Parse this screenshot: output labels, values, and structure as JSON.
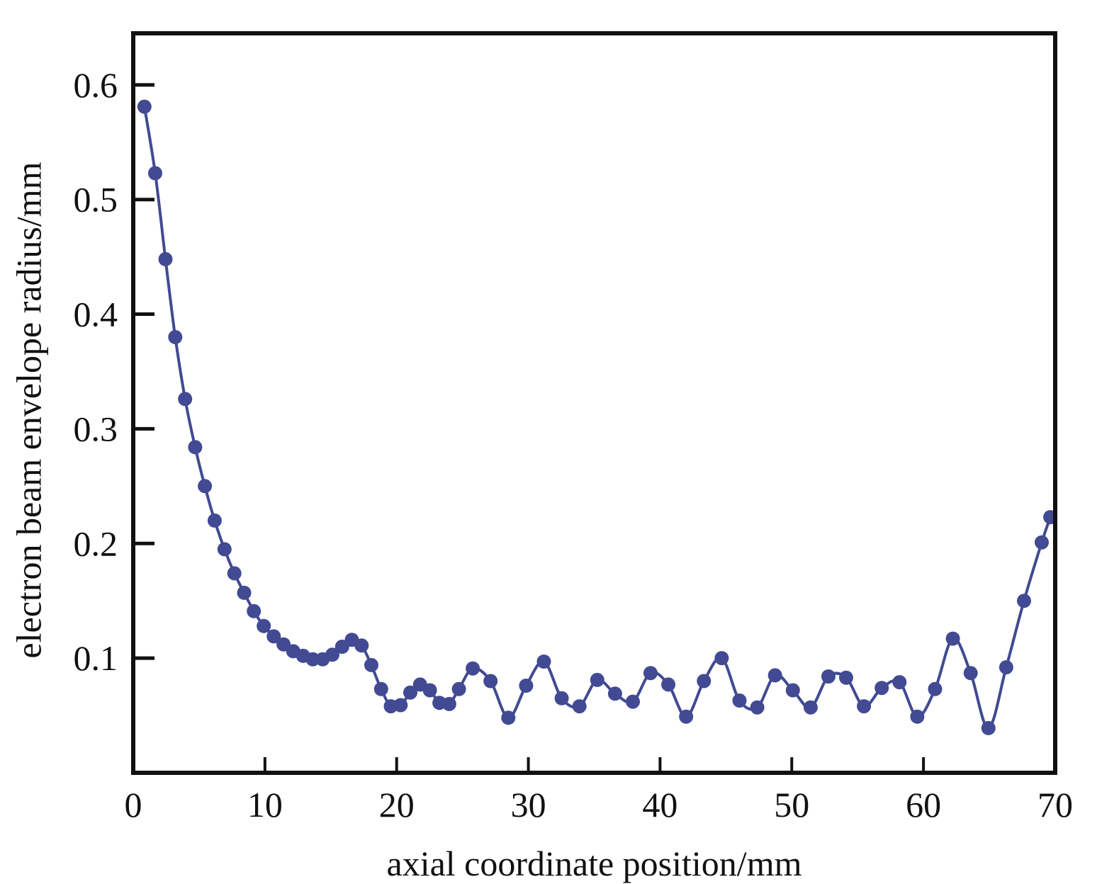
{
  "chart_data": {
    "type": "line",
    "xlabel": "axial coordinate position/mm",
    "ylabel": "electron beam envelope radius/mm",
    "xlim": [
      0,
      70
    ],
    "ylim": [
      0.0,
      0.645
    ],
    "xticks": [
      0,
      10,
      20,
      30,
      40,
      50,
      60,
      70
    ],
    "xtick_labels": [
      "0",
      "10",
      "20",
      "30",
      "40",
      "50",
      "60",
      "70"
    ],
    "yticks": [
      0.1,
      0.2,
      0.3,
      0.4,
      0.5,
      0.6
    ],
    "ytick_labels": [
      "0.1",
      "0.2",
      "0.3",
      "0.4",
      "0.5",
      "0.6"
    ],
    "grid": false,
    "legend": "none",
    "line_color": "#414a92",
    "marker": "circle",
    "series": [
      {
        "x": [
          0.85,
          1.67,
          2.45,
          3.19,
          3.94,
          4.7,
          5.44,
          6.18,
          6.93,
          7.68,
          8.42,
          9.16,
          9.91,
          10.67,
          11.41,
          12.15,
          12.9,
          13.64,
          14.38,
          15.12,
          15.86,
          16.6,
          17.34,
          18.08,
          18.82,
          19.56,
          20.3,
          21.04,
          21.78,
          22.52,
          23.25,
          23.99,
          24.73,
          25.78,
          27.13,
          28.48,
          29.83,
          31.18,
          32.53,
          33.88,
          35.23,
          36.58,
          37.93,
          39.28,
          40.63,
          41.98,
          43.33,
          44.68,
          46.03,
          47.38,
          48.73,
          50.08,
          51.43,
          52.78,
          54.13,
          55.48,
          56.83,
          58.18,
          59.53,
          60.88,
          62.23,
          63.58,
          64.93,
          66.28,
          67.63,
          68.98,
          69.63
        ],
        "y": [
          0.581,
          0.523,
          0.448,
          0.38,
          0.326,
          0.284,
          0.25,
          0.22,
          0.195,
          0.174,
          0.157,
          0.141,
          0.128,
          0.119,
          0.112,
          0.106,
          0.102,
          0.099,
          0.099,
          0.103,
          0.11,
          0.116,
          0.111,
          0.094,
          0.073,
          0.058,
          0.059,
          0.07,
          0.077,
          0.072,
          0.061,
          0.06,
          0.073,
          0.091,
          0.08,
          0.048,
          0.076,
          0.097,
          0.065,
          0.058,
          0.081,
          0.069,
          0.062,
          0.087,
          0.077,
          0.049,
          0.08,
          0.1,
          0.063,
          0.057,
          0.085,
          0.072,
          0.057,
          0.084,
          0.083,
          0.058,
          0.074,
          0.079,
          0.049,
          0.073,
          0.117,
          0.087,
          0.039,
          0.092,
          0.15,
          0.201,
          0.223
        ]
      }
    ]
  }
}
